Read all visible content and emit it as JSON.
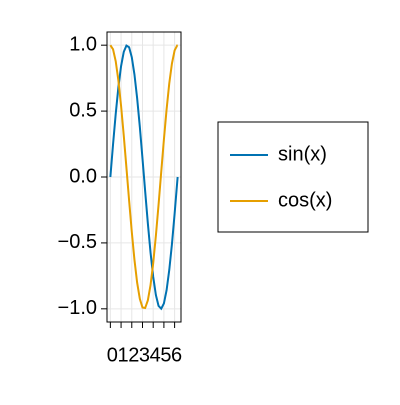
{
  "chart_data": {
    "type": "line",
    "x": [
      0,
      0.25,
      0.5,
      0.75,
      1,
      1.25,
      1.5,
      1.75,
      2,
      2.25,
      2.5,
      2.75,
      3,
      3.25,
      3.5,
      3.75,
      4,
      4.25,
      4.5,
      4.75,
      5,
      5.25,
      5.5,
      5.75,
      6,
      6.25,
      6.283
    ],
    "series": [
      {
        "name": "sin(x)",
        "color": "#0072b2",
        "values": [
          0,
          0.247,
          0.479,
          0.682,
          0.841,
          0.949,
          0.997,
          0.984,
          0.909,
          0.778,
          0.598,
          0.382,
          0.141,
          -0.108,
          -0.351,
          -0.572,
          -0.757,
          -0.895,
          -0.978,
          -0.999,
          -0.959,
          -0.859,
          -0.706,
          -0.51,
          -0.279,
          -0.033,
          0
        ]
      },
      {
        "name": "cos(x)",
        "color": "#e69f00",
        "values": [
          1,
          0.969,
          0.878,
          0.732,
          0.54,
          0.315,
          0.071,
          -0.178,
          -0.416,
          -0.628,
          -0.801,
          -0.924,
          -0.99,
          -0.994,
          -0.936,
          -0.821,
          -0.654,
          -0.446,
          -0.211,
          0.038,
          0.284,
          0.512,
          0.709,
          0.861,
          0.96,
          0.999,
          1
        ]
      }
    ],
    "xlim": [
      -0.314,
      6.597
    ],
    "ylim": [
      -1.1,
      1.1
    ],
    "xticks": [
      0,
      1,
      2,
      3,
      4,
      5,
      6
    ],
    "yticks": [
      {
        "value": -1,
        "label": "−1.0"
      },
      {
        "value": -0.5,
        "label": "−0.5"
      },
      {
        "value": 0,
        "label": "0.0"
      },
      {
        "value": 0.5,
        "label": "0.5"
      },
      {
        "value": 1,
        "label": "1.0"
      }
    ],
    "grid": true,
    "legend": "right"
  }
}
